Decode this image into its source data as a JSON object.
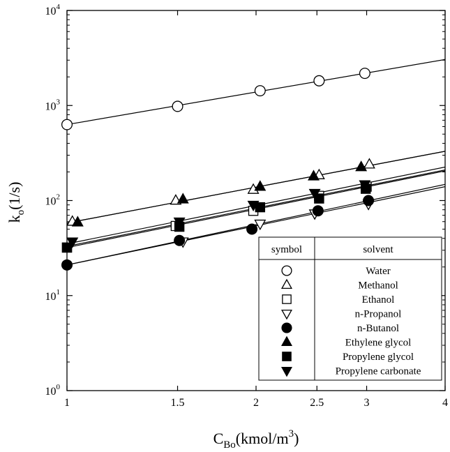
{
  "chart_data": {
    "type": "scatter",
    "xscale": "log",
    "yscale": "log",
    "xlim": [
      1,
      4
    ],
    "ylim": [
      1,
      10000
    ],
    "grid": false,
    "legend_position": "bottom-right",
    "xlabel": {
      "main": "C",
      "sub": "Bo",
      "rest": "(kmol/m",
      "sup": "3",
      "close": ")"
    },
    "ylabel": {
      "main": "k",
      "sub": "o",
      "rest": "(1/s)"
    },
    "x_ticks": [
      {
        "value": 1,
        "label": "1"
      },
      {
        "value": 1.5,
        "label": "1.5"
      },
      {
        "value": 2,
        "label": "2"
      },
      {
        "value": 2.5,
        "label": "2.5"
      },
      {
        "value": 3,
        "label": "3"
      },
      {
        "value": 4,
        "label": "4"
      }
    ],
    "y_ticks": [
      {
        "value": 1,
        "base": "10",
        "exp": "0"
      },
      {
        "value": 10,
        "base": "10",
        "exp": "1"
      },
      {
        "value": 100,
        "base": "10",
        "exp": "2"
      },
      {
        "value": 1000,
        "base": "10",
        "exp": "3"
      },
      {
        "value": 10000,
        "base": "10",
        "exp": "4"
      }
    ],
    "legend": {
      "header_symbol": "symbol",
      "header_solvent": "solvent"
    },
    "series": [
      {
        "name": "Water",
        "marker": "circle",
        "filled": false,
        "x": [
          1.0,
          1.5,
          2.03,
          2.52,
          2.98
        ],
        "y": [
          630,
          980,
          1430,
          1820,
          2180
        ],
        "fit": {
          "x": [
            1,
            4
          ],
          "y": [
            630,
            3050
          ]
        }
      },
      {
        "name": "Methanol",
        "marker": "triangle-up",
        "filled": false,
        "x": [
          1.02,
          1.49,
          1.98,
          2.52,
          3.03
        ],
        "y": [
          60,
          100,
          130,
          185,
          240
        ],
        "fit": {
          "x": [
            1,
            4
          ],
          "y": [
            58,
            330
          ]
        }
      },
      {
        "name": "Ethanol",
        "marker": "square",
        "filled": false,
        "x": [
          1.0,
          1.49,
          1.98,
          2.52,
          3.0
        ],
        "y": [
          32,
          54,
          78,
          112,
          140
        ],
        "fit": {
          "x": [
            1,
            4
          ],
          "y": [
            35,
            225
          ]
        }
      },
      {
        "name": "n-Propanol",
        "marker": "triangle-down",
        "filled": false,
        "x": [
          1.02,
          1.53,
          2.03,
          2.48,
          3.02
        ],
        "y": [
          37,
          37,
          57,
          73,
          92
        ],
        "fit": {
          "x": [
            1,
            4
          ],
          "y": [
            21,
            148
          ]
        }
      },
      {
        "name": "n-Butanol",
        "marker": "circle",
        "filled": true,
        "x": [
          1.0,
          1.51,
          1.97,
          2.51,
          3.02
        ],
        "y": [
          21,
          38,
          50,
          78,
          100
        ],
        "fit": {
          "x": [
            1,
            4
          ],
          "y": [
            21,
            140
          ]
        }
      },
      {
        "name": "Ethylene glycol",
        "marker": "triangle-up",
        "filled": true,
        "x": [
          1.04,
          1.53,
          2.03,
          2.47,
          2.94
        ],
        "y": [
          59,
          103,
          140,
          180,
          225
        ],
        "fit": {
          "x": [
            1,
            4
          ],
          "y": [
            58,
            330
          ]
        }
      },
      {
        "name": "Propylene glycol",
        "marker": "square",
        "filled": true,
        "x": [
          1.0,
          1.51,
          2.03,
          2.52,
          2.99
        ],
        "y": [
          32,
          53,
          85,
          105,
          133
        ],
        "fit": {
          "x": [
            1,
            4
          ],
          "y": [
            32,
            205
          ]
        }
      },
      {
        "name": "Propylene carbonate",
        "marker": "triangle-down",
        "filled": true,
        "x": [
          1.02,
          1.51,
          1.98,
          2.48,
          2.98
        ],
        "y": [
          37,
          60,
          90,
          120,
          148
        ],
        "fit": {
          "x": [
            1,
            4
          ],
          "y": [
            33,
            210
          ]
        }
      }
    ]
  }
}
